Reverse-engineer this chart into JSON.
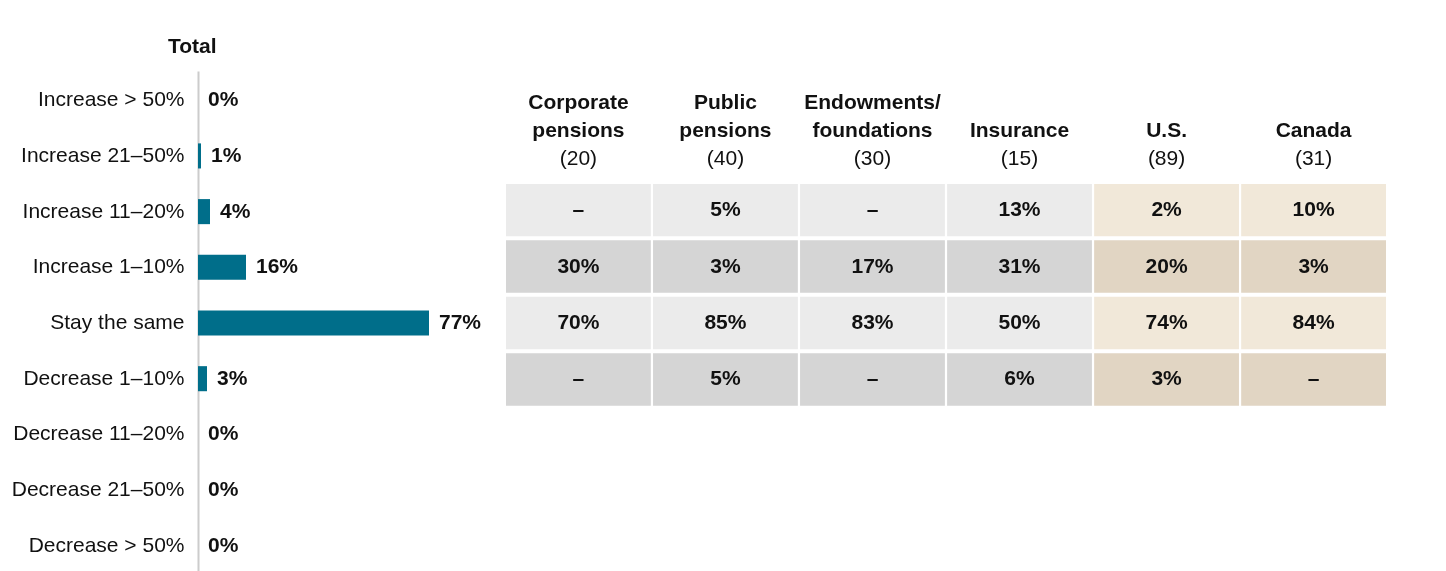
{
  "chart_data": [
    {
      "type": "bar",
      "orientation": "horizontal",
      "title": "Total",
      "categories": [
        "Increase > 50%",
        "Increase 21–50%",
        "Increase 11–20%",
        "Increase  1–10%",
        "Stay the same",
        "Decrease 1–10%",
        "Decrease 11–20%",
        "Decrease  21–50%",
        "Decrease > 50%"
      ],
      "values": [
        0,
        1,
        4,
        16,
        77,
        3,
        0,
        0,
        0
      ],
      "value_labels": [
        "0%",
        "1%",
        "4%",
        "16%",
        "77%",
        "3%",
        "0%",
        "0%",
        "0%"
      ],
      "color": "#006e8a",
      "tick_labels": "y"
    },
    {
      "type": "heatmap",
      "tick_labels": "x",
      "categories": [
        "Corporate\npensions\n(20)",
        "Public\npensions\n(40)",
        "Endowments/\nfoundations\n(30)",
        "Insurance\n(15)",
        "U.S.\n(89)",
        "Canada\n(31)"
      ],
      "y_categories": [
        "Increase 11–20%",
        "Increase  1–10%",
        "Stay the same",
        "Decrease 1–10%"
      ],
      "cells": [
        [
          null,
          5,
          null,
          13,
          2,
          10
        ],
        [
          30,
          3,
          17,
          31,
          20,
          3
        ],
        [
          70,
          85,
          83,
          50,
          74,
          84
        ],
        [
          null,
          5,
          null,
          6,
          3,
          null
        ]
      ],
      "cell_labels": [
        [
          "–",
          "5%",
          "–",
          "13%",
          "2%",
          "10%"
        ],
        [
          "30%",
          "3%",
          "17%",
          "31%",
          "20%",
          "3%"
        ],
        [
          "70%",
          "85%",
          "83%",
          "50%",
          "74%",
          "84%"
        ],
        [
          "–",
          "5%",
          "–",
          "6%",
          "3%",
          "–"
        ]
      ],
      "colors": [
        [
          "#ebebeb",
          "#ebebeb",
          "#ebebeb",
          "#ebebeb",
          "#f1e8d9",
          "#f1e8d9"
        ],
        [
          "#d5d5d5",
          "#d5d5d5",
          "#d5d5d5",
          "#d5d5d5",
          "#e1d5c3",
          "#e1d5c3"
        ],
        [
          "#ebebeb",
          "#ebebeb",
          "#ebebeb",
          "#ebebeb",
          "#f1e8d9",
          "#f1e8d9"
        ],
        [
          "#d5d5d5",
          "#d5d5d5",
          "#d5d5d5",
          "#d5d5d5",
          "#e1d5c3",
          "#e1d5c3"
        ]
      ]
    }
  ]
}
